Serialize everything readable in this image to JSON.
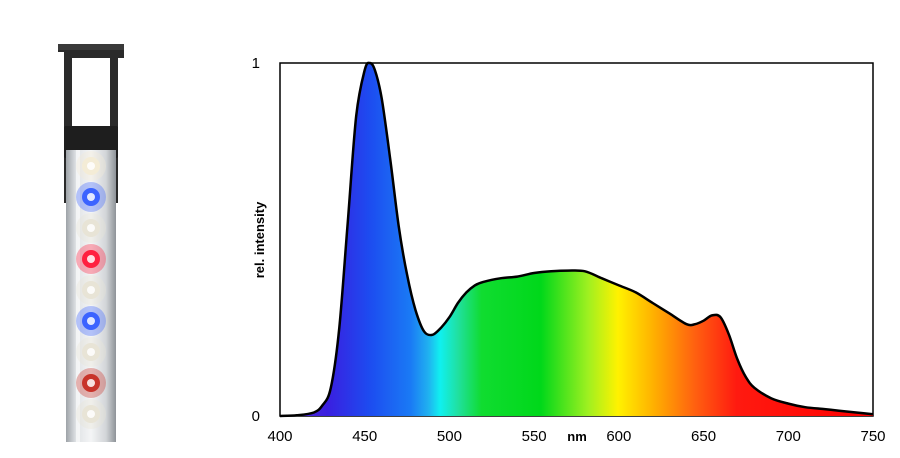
{
  "fixture": {
    "led_colors": [
      "#f4ecd6",
      "#3b63ff",
      "#e8e4d6",
      "#ff2040",
      "#e8e4d6",
      "#3b63ff",
      "#e8e4d6",
      "#c8332a",
      "#e8e4d6"
    ]
  },
  "chart_data": {
    "type": "area",
    "title": "",
    "xlabel": "nm",
    "ylabel": "rel. intensity",
    "xlim": [
      400,
      750
    ],
    "ylim": [
      0,
      1
    ],
    "x_ticks": [
      "400",
      "450",
      "500",
      "550",
      "600",
      "650",
      "700",
      "750"
    ],
    "y_ticks": [
      "0",
      "1"
    ],
    "grid": false,
    "legend": "none",
    "fill": "visible-spectrum gradient (violet to red)",
    "series": [
      {
        "x": [
          400,
          410,
          420,
          425,
          430,
          435,
          440,
          445,
          450,
          453,
          456,
          460,
          465,
          470,
          475,
          480,
          485,
          490,
          495,
          500,
          505,
          510,
          515,
          520,
          530,
          540,
          550,
          560,
          570,
          580,
          590,
          600,
          610,
          620,
          630,
          640,
          645,
          650,
          655,
          660,
          665,
          670,
          675,
          680,
          690,
          700,
          710,
          720,
          730,
          740,
          750
        ],
        "y": [
          0.0,
          0.002,
          0.01,
          0.03,
          0.08,
          0.25,
          0.55,
          0.85,
          0.98,
          1.0,
          0.98,
          0.9,
          0.73,
          0.54,
          0.4,
          0.3,
          0.24,
          0.23,
          0.25,
          0.28,
          0.32,
          0.35,
          0.37,
          0.38,
          0.39,
          0.395,
          0.405,
          0.41,
          0.412,
          0.41,
          0.39,
          0.37,
          0.35,
          0.32,
          0.29,
          0.26,
          0.26,
          0.27,
          0.285,
          0.28,
          0.23,
          0.16,
          0.11,
          0.08,
          0.05,
          0.035,
          0.025,
          0.02,
          0.015,
          0.01,
          0.005
        ]
      }
    ]
  }
}
